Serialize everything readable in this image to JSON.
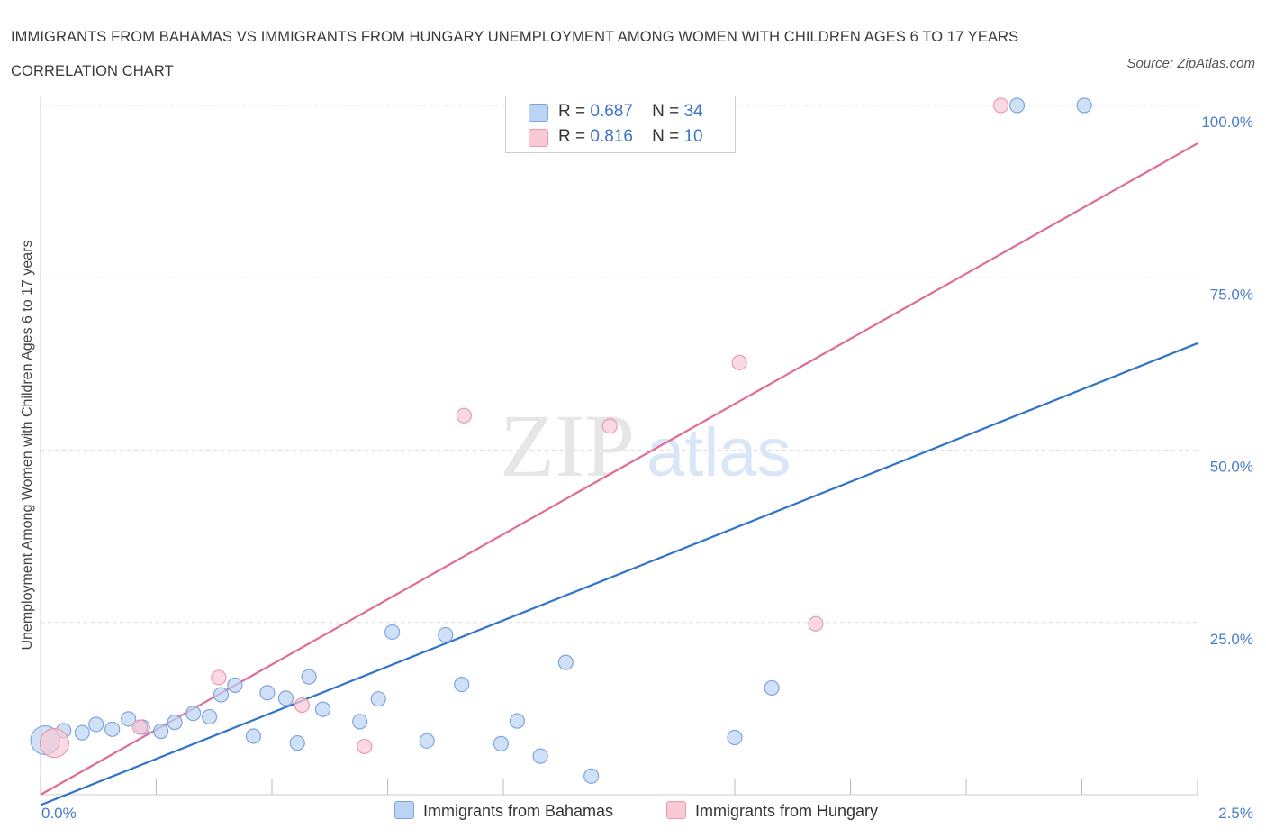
{
  "header": {
    "title": "IMMIGRANTS FROM BAHAMAS VS IMMIGRANTS FROM HUNGARY UNEMPLOYMENT AMONG WOMEN WITH CHILDREN AGES 6 TO 17 YEARS CORRELATION CHART",
    "source": "Source: ZipAtlas.com"
  },
  "legend": {
    "rows": [
      {
        "r_label": "R =",
        "r_value": "0.687",
        "n_label": "N =",
        "n_value": "34"
      },
      {
        "r_label": "R =",
        "r_value": "0.816",
        "n_label": "N =",
        "n_value": "10"
      }
    ]
  },
  "bottom_legend": {
    "bahamas": "Immigrants from Bahamas",
    "hungary": "Immigrants from Hungary"
  },
  "watermark": {
    "zip": "ZIP",
    "atlas": "atlas"
  },
  "colors": {
    "bahamas_fill": "#bcd4f4",
    "bahamas_stroke": "#7ea6dd",
    "bahamas_line": "#2f74c9",
    "hungary_fill": "#f9c9d6",
    "hungary_stroke": "#e99ab2",
    "hungary_line": "#e06b95",
    "grid": "#dddddd",
    "tick_text": "#4a7cc9"
  },
  "chart_data": {
    "type": "scatter",
    "title": "IMMIGRANTS FROM BAHAMAS VS IMMIGRANTS FROM HUNGARY UNEMPLOYMENT AMONG WOMEN WITH CHILDREN AGES 6 TO 17 YEARS CORRELATION CHART",
    "xlabel": "",
    "ylabel": "Unemployment Among Women with Children Ages 6 to 17 years",
    "xlim": [
      0,
      2.5
    ],
    "ylim": [
      0,
      100
    ],
    "x_tick_labels": [
      "0.0%",
      "2.5%"
    ],
    "y_ticks": [
      25,
      50,
      75,
      100
    ],
    "y_tick_labels": [
      "25.0%",
      "50.0%",
      "75.0%",
      "100.0%"
    ],
    "legend_position": "top-center",
    "series": [
      {
        "name": "Immigrants from Bahamas",
        "R": 0.687,
        "N": 34,
        "trend": {
          "x": [
            0.0,
            2.5
          ],
          "y": [
            -1.5,
            65.5
          ]
        },
        "points": [
          {
            "x": 0.01,
            "y": 7.9,
            "size": "large"
          },
          {
            "x": 0.05,
            "y": 9.3
          },
          {
            "x": 0.09,
            "y": 9.0
          },
          {
            "x": 0.12,
            "y": 10.2
          },
          {
            "x": 0.155,
            "y": 9.5
          },
          {
            "x": 0.19,
            "y": 11.0
          },
          {
            "x": 0.22,
            "y": 9.8
          },
          {
            "x": 0.26,
            "y": 9.2
          },
          {
            "x": 0.29,
            "y": 10.5
          },
          {
            "x": 0.33,
            "y": 11.8
          },
          {
            "x": 0.365,
            "y": 11.3
          },
          {
            "x": 0.39,
            "y": 14.5
          },
          {
            "x": 0.42,
            "y": 15.9
          },
          {
            "x": 0.46,
            "y": 8.5
          },
          {
            "x": 0.49,
            "y": 14.8
          },
          {
            "x": 0.53,
            "y": 14.0
          },
          {
            "x": 0.555,
            "y": 7.5
          },
          {
            "x": 0.58,
            "y": 17.1
          },
          {
            "x": 0.61,
            "y": 12.4
          },
          {
            "x": 0.69,
            "y": 10.6
          },
          {
            "x": 0.73,
            "y": 13.9
          },
          {
            "x": 0.76,
            "y": 23.6
          },
          {
            "x": 0.835,
            "y": 7.8
          },
          {
            "x": 0.875,
            "y": 23.2
          },
          {
            "x": 0.91,
            "y": 16.0
          },
          {
            "x": 0.995,
            "y": 7.4
          },
          {
            "x": 1.03,
            "y": 10.7
          },
          {
            "x": 1.08,
            "y": 5.6
          },
          {
            "x": 1.135,
            "y": 19.2
          },
          {
            "x": 1.19,
            "y": 2.7
          },
          {
            "x": 1.5,
            "y": 8.3
          },
          {
            "x": 1.58,
            "y": 15.5
          },
          {
            "x": 2.11,
            "y": 100.0
          },
          {
            "x": 2.255,
            "y": 100.0
          }
        ]
      },
      {
        "name": "Immigrants from Hungary",
        "R": 0.816,
        "N": 10,
        "trend": {
          "x": [
            0.0,
            2.5
          ],
          "y": [
            0.0,
            94.5
          ]
        },
        "points": [
          {
            "x": 0.03,
            "y": 7.5,
            "size": "large"
          },
          {
            "x": 0.215,
            "y": 9.8
          },
          {
            "x": 0.385,
            "y": 17.0
          },
          {
            "x": 0.565,
            "y": 13.0
          },
          {
            "x": 0.7,
            "y": 7.0
          },
          {
            "x": 0.915,
            "y": 55.0
          },
          {
            "x": 1.23,
            "y": 53.5
          },
          {
            "x": 1.51,
            "y": 62.7
          },
          {
            "x": 1.675,
            "y": 24.8
          },
          {
            "x": 2.075,
            "y": 100.0
          }
        ]
      }
    ]
  }
}
